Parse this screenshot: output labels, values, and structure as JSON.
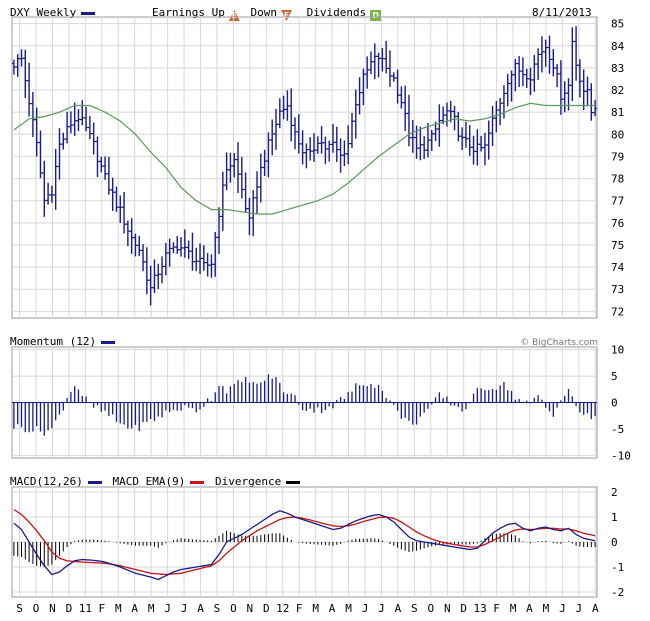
{
  "header": {
    "symbol_label": "DXY Weekly",
    "earnings_label": "Earnings",
    "up_label": "Up",
    "down_label": "Down",
    "dividends_label": "Dividends",
    "up_badge": "E",
    "down_badge": "E",
    "div_badge": "D",
    "date": "8/11/2013"
  },
  "momentum_panel": {
    "label": "Momentum (12)"
  },
  "macd_panel": {
    "macd_label": "MACD(12,26)",
    "ema_label": "MACD EMA(9)",
    "div_label": "Divergence"
  },
  "credit": "© BigCharts.com",
  "colors": {
    "price": "#1a1a8c",
    "ma": "#5a9a5a",
    "momentum": "#1a1a8c",
    "macd": "#1a1a8c",
    "ema": "#cc1111",
    "divergence": "#000000",
    "grid": "#d8d8d8",
    "up_badge": "#cc6633",
    "down_badge": "#cc6633",
    "div_badge": "#7ab648"
  },
  "chart_data": [
    {
      "type": "ohlc",
      "name": "price",
      "series_label": "DXY Weekly",
      "y_ticks": [
        72,
        73,
        74,
        75,
        76,
        77,
        78,
        79,
        80,
        81,
        82,
        83,
        84,
        85
      ],
      "ylim": [
        71.7,
        85.3
      ],
      "x_tick_labels": [
        "S",
        "O",
        "N",
        "D",
        "11",
        "F",
        "M",
        "A",
        "M",
        "J",
        "J",
        "A",
        "S",
        "O",
        "N",
        "D",
        "12",
        "F",
        "M",
        "A",
        "M",
        "J",
        "J",
        "A",
        "S",
        "O",
        "N",
        "D",
        "13",
        "F",
        "M",
        "A",
        "M",
        "J",
        "J",
        "A"
      ],
      "weeks": 154,
      "anchors": [
        [
          0,
          83.2
        ],
        [
          2,
          83.4
        ],
        [
          4,
          81.5
        ],
        [
          6,
          79.5
        ],
        [
          8,
          77.0
        ],
        [
          10,
          77.5
        ],
        [
          12,
          79.5
        ],
        [
          15,
          80.5
        ],
        [
          17,
          80.8
        ],
        [
          19,
          80.2
        ],
        [
          21,
          79.5
        ],
        [
          24,
          78.0
        ],
        [
          28,
          76.5
        ],
        [
          31,
          75.3
        ],
        [
          33,
          74.8
        ],
        [
          35,
          73.6
        ],
        [
          36,
          73.0
        ],
        [
          38,
          73.8
        ],
        [
          40,
          74.5
        ],
        [
          43,
          75.0
        ],
        [
          46,
          74.6
        ],
        [
          48,
          74.3
        ],
        [
          50,
          74.0
        ],
        [
          52,
          74.2
        ],
        [
          54,
          76.5
        ],
        [
          56,
          78.5
        ],
        [
          58,
          78.8
        ],
        [
          60,
          77.5
        ],
        [
          62,
          76.0
        ],
        [
          64,
          77.8
        ],
        [
          66,
          79.0
        ],
        [
          68,
          80.0
        ],
        [
          70,
          81.0
        ],
        [
          72,
          81.3
        ],
        [
          74,
          80.0
        ],
        [
          76,
          79.3
        ],
        [
          78,
          79.0
        ],
        [
          80,
          79.8
        ],
        [
          82,
          79.4
        ],
        [
          84,
          79.5
        ],
        [
          86,
          79.0
        ],
        [
          88,
          79.6
        ],
        [
          90,
          81.5
        ],
        [
          92,
          82.5
        ],
        [
          94,
          83.2
        ],
        [
          96,
          83.5
        ],
        [
          98,
          83.0
        ],
        [
          100,
          82.5
        ],
        [
          102,
          81.5
        ],
        [
          104,
          80.0
        ],
        [
          106,
          79.3
        ],
        [
          108,
          79.5
        ],
        [
          110,
          79.8
        ],
        [
          112,
          80.6
        ],
        [
          114,
          81.0
        ],
        [
          116,
          80.6
        ],
        [
          118,
          79.7
        ],
        [
          120,
          79.5
        ],
        [
          122,
          79.3
        ],
        [
          124,
          79.4
        ],
        [
          126,
          80.6
        ],
        [
          128,
          81.5
        ],
        [
          130,
          82.5
        ],
        [
          132,
          83.0
        ],
        [
          134,
          82.8
        ],
        [
          136,
          82.7
        ],
        [
          138,
          83.6
        ],
        [
          140,
          84.0
        ],
        [
          142,
          83.2
        ],
        [
          144,
          81.8
        ],
        [
          146,
          82.2
        ],
        [
          147,
          84.2
        ],
        [
          148,
          83.2
        ],
        [
          150,
          82.0
        ],
        [
          151,
          81.8
        ],
        [
          152,
          81.0
        ],
        [
          153,
          81.3
        ]
      ],
      "moving_average_anchors": [
        [
          0,
          80.2
        ],
        [
          4,
          80.7
        ],
        [
          8,
          80.8
        ],
        [
          12,
          81.0
        ],
        [
          16,
          81.3
        ],
        [
          20,
          81.3
        ],
        [
          24,
          81.0
        ],
        [
          28,
          80.6
        ],
        [
          32,
          80.0
        ],
        [
          36,
          79.2
        ],
        [
          40,
          78.5
        ],
        [
          44,
          77.6
        ],
        [
          48,
          77.0
        ],
        [
          52,
          76.6
        ],
        [
          56,
          76.6
        ],
        [
          60,
          76.5
        ],
        [
          64,
          76.4
        ],
        [
          68,
          76.4
        ],
        [
          72,
          76.6
        ],
        [
          76,
          76.8
        ],
        [
          80,
          77.0
        ],
        [
          84,
          77.3
        ],
        [
          88,
          77.8
        ],
        [
          92,
          78.4
        ],
        [
          96,
          79.0
        ],
        [
          100,
          79.5
        ],
        [
          104,
          80.0
        ],
        [
          108,
          80.3
        ],
        [
          112,
          80.5
        ],
        [
          116,
          80.7
        ],
        [
          120,
          80.6
        ],
        [
          124,
          80.7
        ],
        [
          128,
          80.9
        ],
        [
          132,
          81.2
        ],
        [
          136,
          81.4
        ],
        [
          140,
          81.3
        ],
        [
          144,
          81.3
        ],
        [
          148,
          81.3
        ],
        [
          153,
          81.3
        ]
      ]
    },
    {
      "type": "bar",
      "name": "momentum",
      "series_label": "Momentum (12)",
      "y_ticks": [
        10,
        5,
        0,
        -5,
        -10
      ],
      "ylim": [
        -10.5,
        10.5
      ],
      "anchors": [
        [
          0,
          -4.5
        ],
        [
          4,
          -5.0
        ],
        [
          8,
          -5.5
        ],
        [
          10,
          -5.0
        ],
        [
          12,
          -2.5
        ],
        [
          14,
          1.0
        ],
        [
          16,
          3.5
        ],
        [
          18,
          1.5
        ],
        [
          20,
          -0.5
        ],
        [
          24,
          -2.0
        ],
        [
          28,
          -4.0
        ],
        [
          32,
          -5.0
        ],
        [
          36,
          -3.5
        ],
        [
          40,
          -2.0
        ],
        [
          44,
          -1.0
        ],
        [
          48,
          -1.5
        ],
        [
          52,
          1.0
        ],
        [
          54,
          3.5
        ],
        [
          56,
          2.5
        ],
        [
          58,
          3.0
        ],
        [
          60,
          4.0
        ],
        [
          62,
          4.5
        ],
        [
          64,
          3.0
        ],
        [
          66,
          4.5
        ],
        [
          68,
          5.0
        ],
        [
          70,
          3.5
        ],
        [
          72,
          1.5
        ],
        [
          74,
          1.0
        ],
        [
          76,
          -1.0
        ],
        [
          80,
          -1.5
        ],
        [
          84,
          -0.5
        ],
        [
          88,
          1.5
        ],
        [
          90,
          3.0
        ],
        [
          92,
          3.5
        ],
        [
          94,
          4.0
        ],
        [
          96,
          3.0
        ],
        [
          98,
          1.5
        ],
        [
          100,
          -1.0
        ],
        [
          102,
          -2.5
        ],
        [
          104,
          -4.0
        ],
        [
          106,
          -3.5
        ],
        [
          108,
          -2.0
        ],
        [
          110,
          -1.0
        ],
        [
          112,
          1.5
        ],
        [
          114,
          0.5
        ],
        [
          116,
          -0.5
        ],
        [
          118,
          -1.5
        ],
        [
          120,
          0.0
        ],
        [
          122,
          2.0
        ],
        [
          124,
          3.0
        ],
        [
          126,
          2.8
        ],
        [
          128,
          3.5
        ],
        [
          130,
          3.0
        ],
        [
          132,
          1.0
        ],
        [
          134,
          0.0
        ],
        [
          136,
          -0.5
        ],
        [
          138,
          1.5
        ],
        [
          140,
          -1.0
        ],
        [
          142,
          -2.0
        ],
        [
          144,
          0.5
        ],
        [
          146,
          2.0
        ],
        [
          148,
          -0.5
        ],
        [
          150,
          -2.5
        ],
        [
          153,
          -3.0
        ]
      ]
    },
    {
      "type": "line",
      "name": "macd",
      "series": [
        {
          "name": "MACD(12,26)"
        },
        {
          "name": "MACD EMA(9)"
        },
        {
          "name": "Divergence"
        }
      ],
      "y_ticks": [
        2,
        1,
        0,
        -1,
        -2
      ],
      "ylim": [
        -2.2,
        2.2
      ],
      "macd_anchors": [
        [
          0,
          0.75
        ],
        [
          2,
          0.5
        ],
        [
          4,
          0.0
        ],
        [
          6,
          -0.5
        ],
        [
          8,
          -0.95
        ],
        [
          10,
          -1.3
        ],
        [
          12,
          -1.2
        ],
        [
          14,
          -0.95
        ],
        [
          16,
          -0.75
        ],
        [
          18,
          -0.7
        ],
        [
          20,
          -0.72
        ],
        [
          22,
          -0.75
        ],
        [
          24,
          -0.8
        ],
        [
          28,
          -1.0
        ],
        [
          32,
          -1.25
        ],
        [
          36,
          -1.4
        ],
        [
          38,
          -1.5
        ],
        [
          40,
          -1.35
        ],
        [
          42,
          -1.2
        ],
        [
          44,
          -1.1
        ],
        [
          48,
          -1.0
        ],
        [
          52,
          -0.9
        ],
        [
          54,
          -0.5
        ],
        [
          56,
          0.0
        ],
        [
          58,
          0.15
        ],
        [
          60,
          0.3
        ],
        [
          62,
          0.5
        ],
        [
          64,
          0.7
        ],
        [
          66,
          0.9
        ],
        [
          68,
          1.1
        ],
        [
          70,
          1.25
        ],
        [
          72,
          1.15
        ],
        [
          74,
          1.0
        ],
        [
          76,
          0.9
        ],
        [
          78,
          0.8
        ],
        [
          80,
          0.7
        ],
        [
          82,
          0.6
        ],
        [
          84,
          0.5
        ],
        [
          86,
          0.55
        ],
        [
          88,
          0.7
        ],
        [
          90,
          0.85
        ],
        [
          92,
          0.95
        ],
        [
          94,
          1.05
        ],
        [
          96,
          1.1
        ],
        [
          98,
          1.0
        ],
        [
          100,
          0.8
        ],
        [
          102,
          0.5
        ],
        [
          104,
          0.2
        ],
        [
          106,
          0.05
        ],
        [
          108,
          0.0
        ],
        [
          110,
          -0.05
        ],
        [
          112,
          -0.1
        ],
        [
          114,
          -0.15
        ],
        [
          116,
          -0.2
        ],
        [
          118,
          -0.25
        ],
        [
          120,
          -0.3
        ],
        [
          122,
          -0.25
        ],
        [
          124,
          0.05
        ],
        [
          126,
          0.35
        ],
        [
          128,
          0.55
        ],
        [
          130,
          0.7
        ],
        [
          132,
          0.75
        ],
        [
          134,
          0.55
        ],
        [
          136,
          0.45
        ],
        [
          138,
          0.55
        ],
        [
          140,
          0.6
        ],
        [
          142,
          0.5
        ],
        [
          144,
          0.45
        ],
        [
          146,
          0.55
        ],
        [
          148,
          0.3
        ],
        [
          150,
          0.15
        ],
        [
          153,
          0.05
        ]
      ],
      "ema_anchors": [
        [
          0,
          1.3
        ],
        [
          2,
          1.1
        ],
        [
          4,
          0.8
        ],
        [
          6,
          0.45
        ],
        [
          8,
          0.05
        ],
        [
          10,
          -0.4
        ],
        [
          12,
          -0.65
        ],
        [
          14,
          -0.75
        ],
        [
          16,
          -0.78
        ],
        [
          18,
          -0.8
        ],
        [
          20,
          -0.82
        ],
        [
          24,
          -0.85
        ],
        [
          28,
          -0.95
        ],
        [
          32,
          -1.1
        ],
        [
          36,
          -1.25
        ],
        [
          40,
          -1.3
        ],
        [
          44,
          -1.25
        ],
        [
          48,
          -1.1
        ],
        [
          52,
          -0.95
        ],
        [
          54,
          -0.75
        ],
        [
          56,
          -0.45
        ],
        [
          58,
          -0.2
        ],
        [
          60,
          0.05
        ],
        [
          62,
          0.25
        ],
        [
          64,
          0.45
        ],
        [
          66,
          0.6
        ],
        [
          68,
          0.75
        ],
        [
          70,
          0.9
        ],
        [
          72,
          0.98
        ],
        [
          74,
          1.0
        ],
        [
          76,
          0.95
        ],
        [
          78,
          0.88
        ],
        [
          80,
          0.8
        ],
        [
          82,
          0.72
        ],
        [
          84,
          0.65
        ],
        [
          86,
          0.62
        ],
        [
          88,
          0.65
        ],
        [
          90,
          0.72
        ],
        [
          92,
          0.82
        ],
        [
          94,
          0.9
        ],
        [
          96,
          0.98
        ],
        [
          98,
          1.0
        ],
        [
          100,
          0.95
        ],
        [
          102,
          0.8
        ],
        [
          104,
          0.6
        ],
        [
          106,
          0.4
        ],
        [
          108,
          0.25
        ],
        [
          110,
          0.12
        ],
        [
          112,
          0.02
        ],
        [
          114,
          -0.05
        ],
        [
          116,
          -0.1
        ],
        [
          118,
          -0.15
        ],
        [
          120,
          -0.2
        ],
        [
          122,
          -0.2
        ],
        [
          124,
          -0.1
        ],
        [
          126,
          0.05
        ],
        [
          128,
          0.2
        ],
        [
          130,
          0.35
        ],
        [
          132,
          0.48
        ],
        [
          134,
          0.52
        ],
        [
          136,
          0.5
        ],
        [
          138,
          0.52
        ],
        [
          140,
          0.55
        ],
        [
          142,
          0.55
        ],
        [
          144,
          0.52
        ],
        [
          146,
          0.52
        ],
        [
          148,
          0.45
        ],
        [
          150,
          0.35
        ],
        [
          153,
          0.25
        ]
      ]
    }
  ]
}
